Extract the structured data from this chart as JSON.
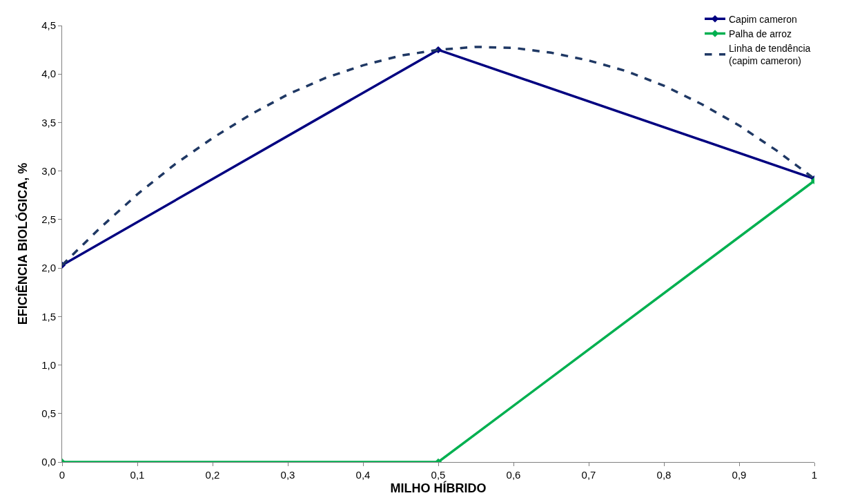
{
  "chart_data": {
    "type": "line",
    "xlabel": "MILHO HÍBRIDO",
    "ylabel": "EFICIÊNCIA BIOLÓGICA, %",
    "x": [
      0,
      0.5,
      1
    ],
    "series": [
      {
        "name": "Capim cameron",
        "color": "#000080",
        "marker": "diamond",
        "values": [
          2.03,
          4.25,
          2.92
        ]
      },
      {
        "name": "Palha de arroz",
        "color": "#00b050",
        "marker": "diamond",
        "values": [
          0,
          0,
          2.9
        ]
      },
      {
        "name": "Linha de tendência\n(capim cameron)",
        "color": "#1f3864",
        "line_style": "dashed",
        "marker": "none",
        "x": [
          0,
          0.05,
          0.1,
          0.15,
          0.2,
          0.25,
          0.3,
          0.35,
          0.4,
          0.45,
          0.5,
          0.55,
          0.6,
          0.65,
          0.7,
          0.75,
          0.8,
          0.85,
          0.9,
          0.95,
          1
        ],
        "values": [
          2.03,
          2.41,
          2.76,
          3.07,
          3.34,
          3.58,
          3.79,
          3.96,
          4.09,
          4.19,
          4.25,
          4.28,
          4.27,
          4.22,
          4.14,
          4.03,
          3.88,
          3.69,
          3.47,
          3.21,
          2.92
        ]
      }
    ],
    "xlim": [
      0,
      1
    ],
    "xticks": [
      0,
      {
        "value": 0.1,
        "label": "0,1"
      },
      {
        "value": 0.2,
        "label": "0,2"
      },
      {
        "value": 0.3,
        "label": "0,3"
      },
      {
        "value": 0.4,
        "label": "0,4"
      },
      {
        "value": 0.5,
        "label": "0,5"
      },
      {
        "value": 0.6,
        "label": "0,6"
      },
      {
        "value": 0.7,
        "label": "0,7"
      },
      {
        "value": 0.8,
        "label": "0,8"
      },
      {
        "value": 0.9,
        "label": "0,9"
      },
      1
    ],
    "ylim": [
      0,
      4.5
    ],
    "yticks": [
      {
        "value": 0,
        "label": "0,0"
      },
      {
        "value": 0.5,
        "label": "0,5"
      },
      {
        "value": 1,
        "label": "1,0"
      },
      {
        "value": 1.5,
        "label": "1,5"
      },
      {
        "value": 2,
        "label": "2,0"
      },
      {
        "value": 2.5,
        "label": "2,5"
      },
      {
        "value": 3,
        "label": "3,0"
      },
      {
        "value": 3.5,
        "label": "3,5"
      },
      {
        "value": 4,
        "label": "4,0"
      },
      {
        "value": 4.5,
        "label": "4,5"
      }
    ],
    "legend": "top right"
  }
}
